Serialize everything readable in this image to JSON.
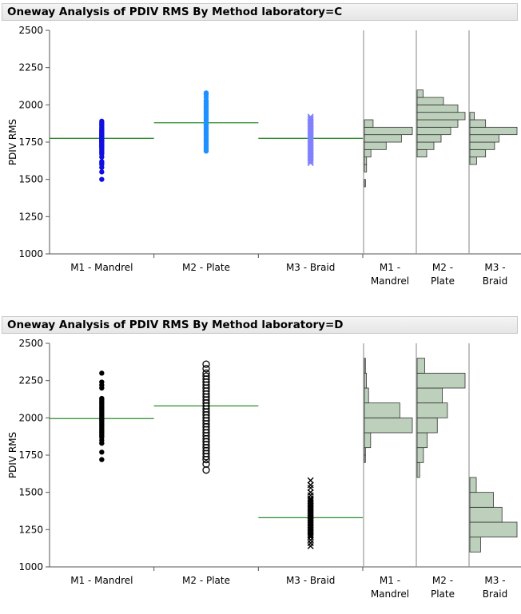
{
  "panels": [
    {
      "title": "Oneway Analysis of PDIV RMS By Method laboratory=C",
      "chart_data": {
        "type": "scatter",
        "title": "Oneway Analysis of PDIV RMS By Method laboratory=C",
        "ylabel": "PDIV RMS",
        "ylim": [
          1000,
          2500
        ],
        "yticks": [
          1000,
          1250,
          1500,
          1750,
          2000,
          2250,
          2500
        ],
        "groups": [
          {
            "label": "M1 - Mandrel",
            "mean": 1775,
            "marker": "dot",
            "color": "#1010e0",
            "points": [
              1500,
              1550,
              1580,
              1600,
              1610,
              1620,
              1650,
              1670,
              1680,
              1690,
              1700,
              1710,
              1715,
              1720,
              1725,
              1730,
              1735,
              1740,
              1745,
              1750,
              1755,
              1760,
              1765,
              1770,
              1775,
              1780,
              1785,
              1790,
              1795,
              1800,
              1805,
              1810,
              1815,
              1820,
              1825,
              1830,
              1840,
              1850,
              1860,
              1870,
              1880,
              1890
            ],
            "histogram_label": [
              "M1 -",
              "Mandrel"
            ],
            "histogram": [
              {
                "lo": 1450,
                "hi": 1500,
                "count": 1
              },
              {
                "lo": 1550,
                "hi": 1600,
                "count": 2
              },
              {
                "lo": 1600,
                "hi": 1650,
                "count": 2
              },
              {
                "lo": 1650,
                "hi": 1700,
                "count": 6
              },
              {
                "lo": 1700,
                "hi": 1750,
                "count": 20
              },
              {
                "lo": 1750,
                "hi": 1800,
                "count": 34
              },
              {
                "lo": 1800,
                "hi": 1850,
                "count": 44
              },
              {
                "lo": 1850,
                "hi": 1900,
                "count": 8
              }
            ]
          },
          {
            "label": "M2 - Plate",
            "mean": 1880,
            "marker": "dot",
            "color": "#1e90ff",
            "points": [
              1690,
              1700,
              1710,
              1720,
              1730,
              1740,
              1750,
              1760,
              1770,
              1780,
              1790,
              1800,
              1810,
              1820,
              1830,
              1840,
              1850,
              1860,
              1870,
              1880,
              1890,
              1900,
              1910,
              1920,
              1930,
              1940,
              1950,
              1960,
              1970,
              1980,
              1990,
              2000,
              2010,
              2020,
              2030,
              2050,
              2070,
              2080
            ],
            "histogram_label": [
              "M2 -",
              "Plate"
            ],
            "histogram": [
              {
                "lo": 1650,
                "hi": 1700,
                "count": 8
              },
              {
                "lo": 1700,
                "hi": 1750,
                "count": 14
              },
              {
                "lo": 1750,
                "hi": 1800,
                "count": 20
              },
              {
                "lo": 1800,
                "hi": 1850,
                "count": 28
              },
              {
                "lo": 1850,
                "hi": 1900,
                "count": 34
              },
              {
                "lo": 1900,
                "hi": 1950,
                "count": 40
              },
              {
                "lo": 1950,
                "hi": 2000,
                "count": 34
              },
              {
                "lo": 2000,
                "hi": 2050,
                "count": 22
              },
              {
                "lo": 2050,
                "hi": 2100,
                "count": 5
              }
            ]
          },
          {
            "label": "M3 - Braid",
            "mean": 1775,
            "marker": "x",
            "color": "#8080ff",
            "points": [
              1610,
              1620,
              1630,
              1640,
              1650,
              1660,
              1670,
              1680,
              1690,
              1700,
              1710,
              1720,
              1730,
              1740,
              1750,
              1760,
              1770,
              1780,
              1790,
              1800,
              1810,
              1820,
              1830,
              1840,
              1850,
              1860,
              1870,
              1880,
              1890,
              1900,
              1910,
              1920
            ],
            "histogram_label": [
              "M3 -",
              "Braid"
            ],
            "histogram": [
              {
                "lo": 1600,
                "hi": 1650,
                "count": 6
              },
              {
                "lo": 1650,
                "hi": 1700,
                "count": 14
              },
              {
                "lo": 1700,
                "hi": 1750,
                "count": 22
              },
              {
                "lo": 1750,
                "hi": 1800,
                "count": 26
              },
              {
                "lo": 1800,
                "hi": 1850,
                "count": 42
              },
              {
                "lo": 1850,
                "hi": 1900,
                "count": 14
              },
              {
                "lo": 1900,
                "hi": 1950,
                "count": 4
              }
            ]
          }
        ]
      }
    },
    {
      "title": "Oneway Analysis of PDIV RMS By Method laboratory=D",
      "chart_data": {
        "type": "scatter",
        "title": "Oneway Analysis of PDIV RMS By Method laboratory=D",
        "ylabel": "PDIV RMS",
        "ylim": [
          1000,
          2500
        ],
        "yticks": [
          1000,
          1250,
          1500,
          1750,
          2000,
          2250,
          2500
        ],
        "groups": [
          {
            "label": "M1 - Mandrel",
            "mean": 1995,
            "marker": "dot",
            "color": "#000000",
            "points": [
              1720,
              1770,
              1830,
              1850,
              1870,
              1880,
              1890,
              1900,
              1910,
              1920,
              1930,
              1940,
              1950,
              1960,
              1970,
              1980,
              1990,
              2000,
              2010,
              2020,
              2030,
              2040,
              2050,
              2060,
              2070,
              2080,
              2090,
              2100,
              2110,
              2120,
              2130,
              2200,
              2220,
              2240,
              2300
            ],
            "histogram_label": [
              "M1 -",
              "Mandrel"
            ],
            "histogram": [
              {
                "lo": 1700,
                "hi": 1750,
                "count": 1
              },
              {
                "lo": 1750,
                "hi": 1800,
                "count": 1
              },
              {
                "lo": 1800,
                "hi": 1900,
                "count": 6
              },
              {
                "lo": 1900,
                "hi": 2000,
                "count": 46
              },
              {
                "lo": 2000,
                "hi": 2100,
                "count": 34
              },
              {
                "lo": 2100,
                "hi": 2200,
                "count": 4
              },
              {
                "lo": 2200,
                "hi": 2300,
                "count": 2
              },
              {
                "lo": 2300,
                "hi": 2400,
                "count": 1
              }
            ]
          },
          {
            "label": "M2 - Plate",
            "mean": 2080,
            "marker": "circle",
            "color": "#000000",
            "points": [
              1650,
              1690,
              1720,
              1740,
              1760,
              1780,
              1800,
              1820,
              1840,
              1860,
              1880,
              1900,
              1920,
              1940,
              1960,
              1980,
              2000,
              2020,
              2040,
              2060,
              2080,
              2100,
              2120,
              2140,
              2160,
              2180,
              2200,
              2220,
              2240,
              2260,
              2280,
              2300,
              2330,
              2360
            ],
            "histogram_label": [
              "M2 -",
              "Plate"
            ],
            "histogram": [
              {
                "lo": 1600,
                "hi": 1700,
                "count": 2
              },
              {
                "lo": 1700,
                "hi": 1800,
                "count": 5
              },
              {
                "lo": 1800,
                "hi": 1900,
                "count": 8
              },
              {
                "lo": 1900,
                "hi": 2000,
                "count": 16
              },
              {
                "lo": 2000,
                "hi": 2100,
                "count": 24
              },
              {
                "lo": 2100,
                "hi": 2200,
                "count": 20
              },
              {
                "lo": 2200,
                "hi": 2300,
                "count": 38
              },
              {
                "lo": 2300,
                "hi": 2400,
                "count": 6
              }
            ]
          },
          {
            "label": "M3 - Braid",
            "mean": 1330,
            "marker": "x",
            "color": "#000000",
            "points": [
              1140,
              1160,
              1180,
              1200,
              1210,
              1220,
              1230,
              1240,
              1250,
              1260,
              1270,
              1280,
              1290,
              1300,
              1310,
              1320,
              1330,
              1340,
              1350,
              1360,
              1370,
              1380,
              1390,
              1400,
              1410,
              1420,
              1430,
              1440,
              1450,
              1460,
              1480,
              1500,
              1530,
              1550,
              1580
            ],
            "histogram_label": [
              "M3 -",
              "Braid"
            ],
            "histogram": [
              {
                "lo": 1100,
                "hi": 1200,
                "count": 10
              },
              {
                "lo": 1200,
                "hi": 1300,
                "count": 44
              },
              {
                "lo": 1300,
                "hi": 1400,
                "count": 30
              },
              {
                "lo": 1400,
                "hi": 1500,
                "count": 22
              },
              {
                "lo": 1500,
                "hi": 1600,
                "count": 6
              }
            ]
          }
        ]
      }
    }
  ]
}
